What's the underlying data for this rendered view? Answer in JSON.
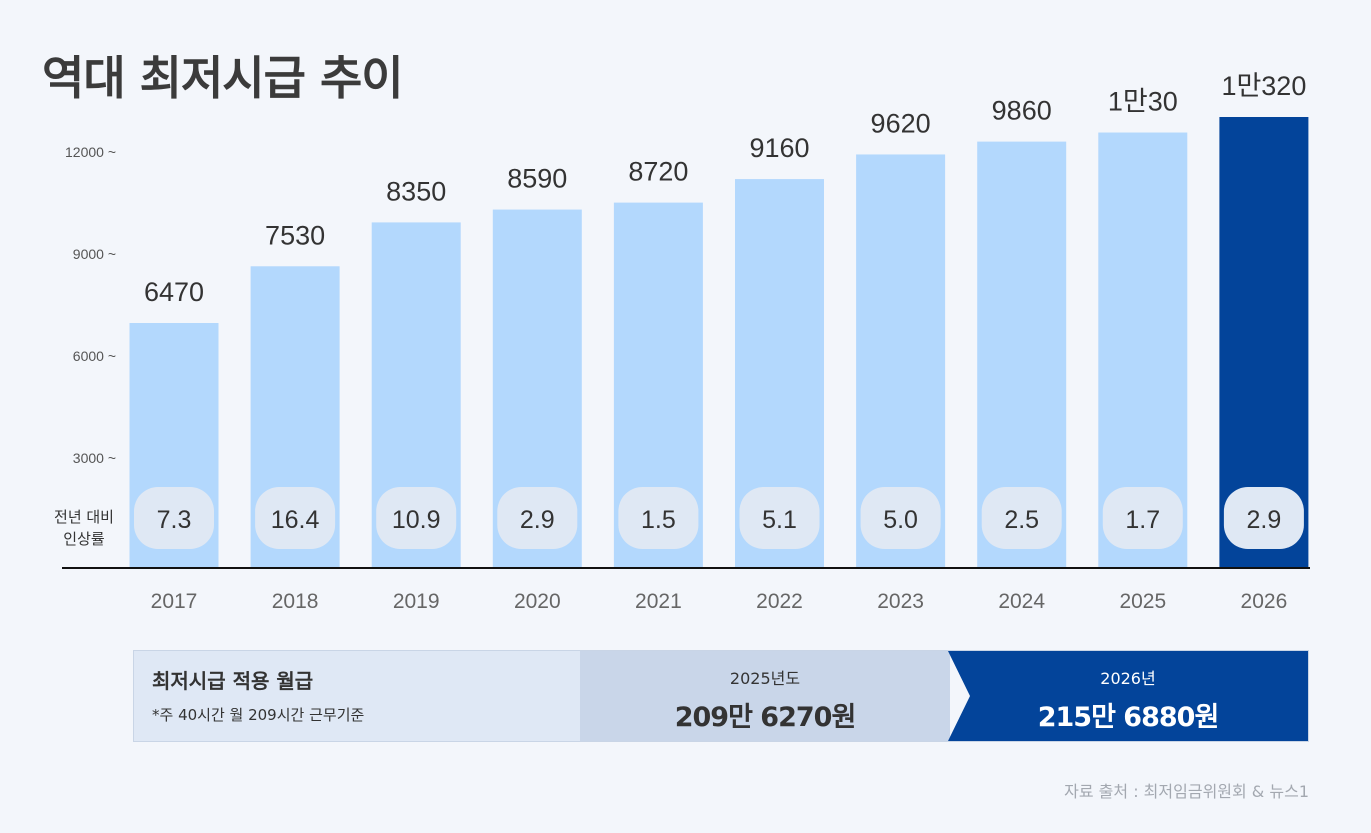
{
  "title": "역대 최저시급 추이",
  "chart_data": {
    "type": "bar",
    "categories": [
      "2017",
      "2018",
      "2019",
      "2020",
      "2021",
      "2022",
      "2023",
      "2024",
      "2025",
      "2026"
    ],
    "values": [
      6470,
      7530,
      8350,
      8590,
      8720,
      9160,
      9620,
      9860,
      10030,
      10320
    ],
    "value_labels": [
      "6470",
      "7530",
      "8350",
      "8590",
      "8720",
      "9160",
      "9620",
      "9860",
      "1만30",
      "1만320"
    ],
    "growth_label": "전년 대비 인상률",
    "growth_rates": [
      "7.3",
      "16.4",
      "10.9",
      "2.9",
      "1.5",
      "5.1",
      "5.0",
      "2.5",
      "1.7",
      "2.9"
    ],
    "y_ticks": [
      "3000 ~",
      "6000 ~",
      "9000 ~",
      "12000 ~"
    ],
    "y_tick_values": [
      3000,
      6000,
      9000,
      12000
    ],
    "ylim": [
      0,
      12000
    ],
    "grid": false,
    "colors": {
      "bar": "#b3d8fd",
      "highlight": "#03449a",
      "pill": "#dfe8f4"
    }
  },
  "summary": {
    "heading": "최저시급 적용 월급",
    "note": "*주 40시간 월 209시간 근무기준",
    "prev_year": "2025년도",
    "prev_amount": "209만 6270원",
    "cur_year": "2026년",
    "cur_amount": "215만 6880원"
  },
  "source": "자료 출처 : 최저임금위원회 & 뉴스1"
}
